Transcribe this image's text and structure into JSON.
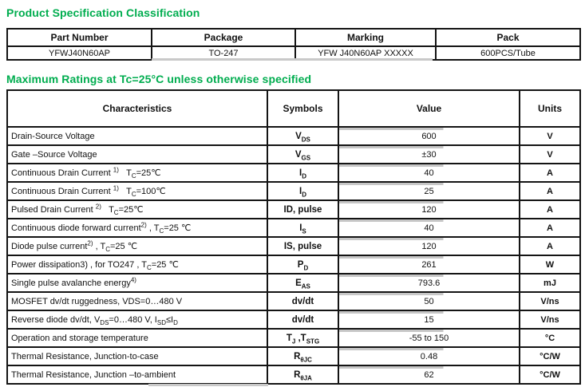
{
  "colors": {
    "heading_green": "#00ad4f",
    "table_border": "#141414",
    "scan_shadow_gray": "#c7c7c7"
  },
  "section1": {
    "title": "Product Specification Classification",
    "table": {
      "headers": [
        "Part Number",
        "Package",
        "Marking",
        "Pack"
      ],
      "rows": [
        [
          "YFWJ40N60AP",
          "TO-247",
          "YFW J40N60AP XXXXX",
          "600PCS/Tube"
        ]
      ]
    }
  },
  "section2": {
    "title": "Maximum Ratings at Tc=25°C unless otherwise specified",
    "table": {
      "headers": [
        "Characteristics",
        "Symbols",
        "Value",
        "Units"
      ],
      "rows": [
        {
          "characteristic": "Drain-Source Voltage",
          "symbol": "V<sub>DS</sub>",
          "value": "600",
          "unit": "V"
        },
        {
          "characteristic": "Gate –Source Voltage",
          "symbol": "V<sub>GS</sub>",
          "value": "±30",
          "unit": "V"
        },
        {
          "characteristic": "Continuous Drain Current <sup>1)</sup>&nbsp;&nbsp;&nbsp;T<sub>C</sub>=25℃",
          "symbol": "I<sub>D</sub>",
          "value": "40",
          "unit": "A"
        },
        {
          "characteristic": "Continuous Drain Current <sup>1)</sup>&nbsp;&nbsp;&nbsp;T<sub>C</sub>=100℃",
          "symbol": "I<sub>D</sub>",
          "value": "25",
          "unit": "A"
        },
        {
          "characteristic": "Pulsed Drain Current <sup>2)</sup>&nbsp;&nbsp;&nbsp;T<sub>C</sub>=25℃",
          "symbol": "ID, pulse",
          "value": "120",
          "unit": "A"
        },
        {
          "characteristic": "Continuous diode forward current<sup>2)</sup> , T<sub>C</sub>=25 ℃",
          "symbol": "I<sub>S</sub>",
          "value": "40",
          "unit": "A"
        },
        {
          "characteristic": "Diode pulse current<sup>2)</sup> , T<sub>C</sub>=25 ℃",
          "symbol": "IS, pulse",
          "value": "120",
          "unit": "A"
        },
        {
          "characteristic": "Power dissipation3) , for TO247 , T<sub>C</sub>=25 ℃",
          "symbol": "P<sub>D</sub>",
          "value": "261",
          "unit": "W"
        },
        {
          "characteristic": "Single pulse avalanche energy<sup>4)</sup>",
          "symbol": "E<sub>AS</sub>",
          "value": "793.6",
          "unit": "mJ"
        },
        {
          "characteristic": "MOSFET dv/dt ruggedness, VDS=0…480 V",
          "symbol": "dv/dt",
          "value": "50",
          "unit": "V/ns"
        },
        {
          "characteristic": "Reverse diode dv/dt, V<sub>DS</sub>=0…480 V, I<sub>SD</sub>≤I<sub>D</sub>",
          "symbol": "dv/dt",
          "value": "15",
          "unit": "V/ns"
        },
        {
          "characteristic": "Operation and storage temperature",
          "symbol": "T<sub>J</sub> ,T<sub>STG</sub>",
          "value": "-55 to 150",
          "unit": "°C"
        },
        {
          "characteristic": "Thermal Resistance, Junction-to-case",
          "symbol": "R<sub>θJC</sub>",
          "value": "0.48",
          "unit": "°C/W"
        },
        {
          "characteristic": "Thermal Resistance, Junction –to-ambient",
          "symbol": "R<sub>θJA</sub>",
          "value": "62",
          "unit": "°C/W"
        }
      ]
    }
  }
}
